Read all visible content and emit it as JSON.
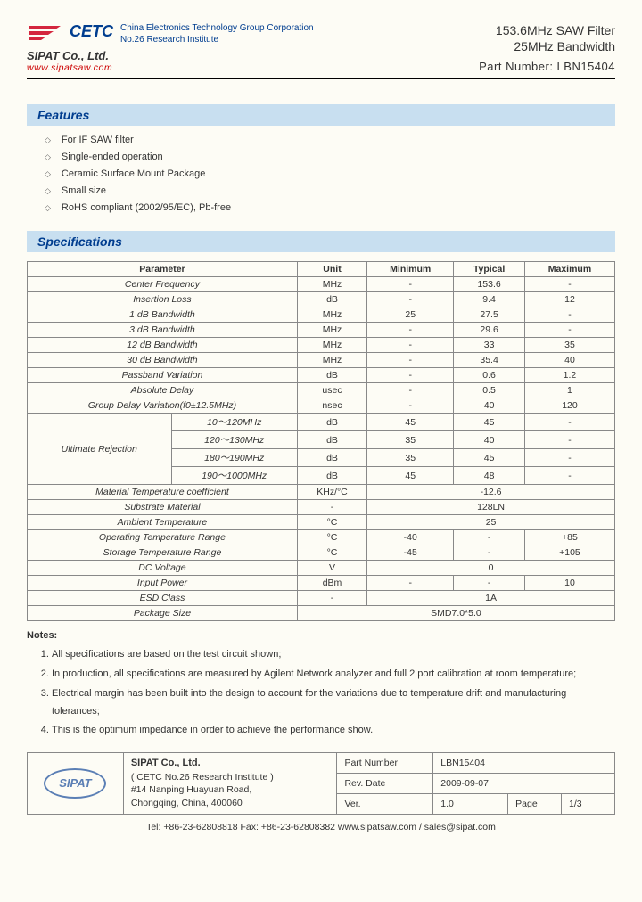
{
  "header": {
    "logo_text": "CETC",
    "corp_line1": "China Electronics Technology Group Corporation",
    "corp_line2": "No.26 Research Institute",
    "company": "SIPAT Co., Ltd.",
    "website": "www.sipatsaw.com",
    "title1": "153.6MHz SAW Filter",
    "title2": "25MHz Bandwidth",
    "part_number": "Part Number: LBN15404"
  },
  "features": {
    "title": "Features",
    "items": [
      "For IF SAW filter",
      "Single-ended operation",
      "Ceramic Surface Mount Package",
      "Small size",
      "RoHS compliant (2002/95/EC), Pb-free"
    ]
  },
  "specs": {
    "title": "Specifications",
    "headers": [
      "Parameter",
      "Unit",
      "Minimum",
      "Typical",
      "Maximum"
    ],
    "rows": [
      {
        "param": "Center Frequency",
        "unit": "MHz",
        "min": "-",
        "typ": "153.6",
        "max": "-"
      },
      {
        "param": "Insertion Loss",
        "unit": "dB",
        "min": "-",
        "typ": "9.4",
        "max": "12"
      },
      {
        "param": "1 dB Bandwidth",
        "unit": "MHz",
        "min": "25",
        "typ": "27.5",
        "max": "-"
      },
      {
        "param": "3 dB Bandwidth",
        "unit": "MHz",
        "min": "-",
        "typ": "29.6",
        "max": "-"
      },
      {
        "param": "12 dB Bandwidth",
        "unit": "MHz",
        "min": "-",
        "typ": "33",
        "max": "35"
      },
      {
        "param": "30 dB Bandwidth",
        "unit": "MHz",
        "min": "-",
        "typ": "35.4",
        "max": "40"
      },
      {
        "param": "Passband Variation",
        "unit": "dB",
        "min": "-",
        "typ": "0.6",
        "max": "1.2"
      },
      {
        "param": "Absolute Delay",
        "unit": "usec",
        "min": "-",
        "typ": "0.5",
        "max": "1"
      },
      {
        "param": "Group Delay Variation(f0±12.5MHz)",
        "unit": "nsec",
        "min": "-",
        "typ": "40",
        "max": "120"
      }
    ],
    "ultimate": {
      "label": "Ultimate Rejection",
      "rows": [
        {
          "range": "10～120MHz",
          "unit": "dB",
          "min": "45",
          "typ": "45",
          "max": "-"
        },
        {
          "range": "120～130MHz",
          "unit": "dB",
          "min": "35",
          "typ": "40",
          "max": "-"
        },
        {
          "range": "180～190MHz",
          "unit": "dB",
          "min": "35",
          "typ": "45",
          "max": "-"
        },
        {
          "range": "190～1000MHz",
          "unit": "dB",
          "min": "45",
          "typ": "48",
          "max": "-"
        }
      ]
    },
    "after": [
      {
        "param": "Material Temperature coefficient",
        "unit": "KHz/°C",
        "val": "-12.6",
        "span": 3
      },
      {
        "param": "Substrate Material",
        "unit": "-",
        "val": "128LN",
        "span": 3
      },
      {
        "param": "Ambient Temperature",
        "unit": "°C",
        "val": "25",
        "span": 3
      }
    ],
    "temp_rows": [
      {
        "param": "Operating Temperature Range",
        "unit": "°C",
        "min": "-40",
        "typ": "-",
        "max": "+85"
      },
      {
        "param": "Storage Temperature Range",
        "unit": "°C",
        "min": "-45",
        "typ": "-",
        "max": "+105"
      }
    ],
    "bottom": [
      {
        "param": "DC Voltage",
        "unit": "V",
        "val": "0",
        "span": 3
      },
      {
        "param": "Input Power",
        "unit": "dBm",
        "min": "-",
        "typ": "-",
        "max": "10"
      },
      {
        "param": "ESD Class",
        "unit": "-",
        "val": "1A",
        "span": 3
      },
      {
        "param": "Package Size",
        "val": "SMD7.0*5.0",
        "span": 4
      }
    ]
  },
  "notes": {
    "title": "Notes:",
    "items": [
      "All specifications are based on the test circuit shown;",
      "In production, all specifications are measured by Agilent Network analyzer and full 2 port calibration at room temperature;",
      "Electrical margin has been built into the design to account for the variations due to temperature drift and manufacturing tolerances;",
      "This is the optimum impedance in order to achieve the performance show."
    ]
  },
  "footer": {
    "logo": "SIPAT",
    "company": "SIPAT Co., Ltd.",
    "addr1": "( CETC No.26 Research Institute )",
    "addr2": "#14 Nanping Huayuan Road,",
    "addr3": "Chongqing, China, 400060",
    "pn_label": "Part Number",
    "pn_val": "LBN15404",
    "rev_label": "Rev. Date",
    "rev_val": "2009-09-07",
    "ver_label": "Ver.",
    "ver_val": "1.0",
    "page_label": "Page",
    "page_val": "1/3",
    "contact": "Tel: +86-23-62808818        Fax: +86-23-62808382           www.sipatsaw.com / sales@sipat.com"
  }
}
